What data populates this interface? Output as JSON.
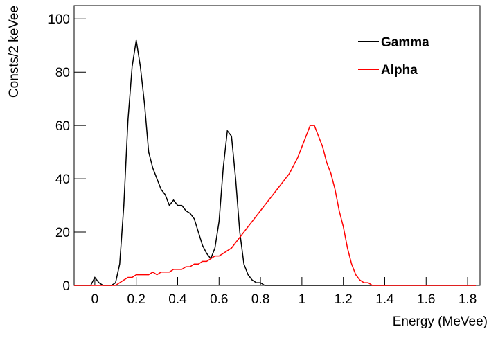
{
  "chart_data": {
    "type": "line",
    "x_label": "Energy (MeVee)",
    "y_label": "Consts/2 keVee",
    "xlim": [
      -0.1,
      1.86
    ],
    "ylim": [
      0,
      105
    ],
    "xticks": [
      0,
      0.2,
      0.4,
      0.6,
      0.8,
      1,
      1.2,
      1.4,
      1.6,
      1.8
    ],
    "yticks": [
      0,
      20,
      40,
      60,
      80,
      100
    ],
    "legend": "upper right",
    "x": [
      -0.1,
      -0.08,
      -0.06,
      -0.04,
      -0.02,
      0,
      0.02,
      0.04,
      0.06,
      0.08,
      0.1,
      0.12,
      0.14,
      0.16,
      0.18,
      0.2,
      0.22,
      0.24,
      0.26,
      0.28,
      0.3,
      0.32,
      0.34,
      0.36,
      0.38,
      0.4,
      0.42,
      0.44,
      0.46,
      0.48,
      0.5,
      0.52,
      0.54,
      0.56,
      0.58,
      0.6,
      0.62,
      0.64,
      0.66,
      0.68,
      0.7,
      0.72,
      0.74,
      0.76,
      0.78,
      0.8,
      0.82,
      0.84,
      0.86,
      0.88,
      0.9,
      0.92,
      0.94,
      0.96,
      0.98,
      1,
      1.02,
      1.04,
      1.06,
      1.08,
      1.1,
      1.12,
      1.14,
      1.16,
      1.18,
      1.2,
      1.22,
      1.24,
      1.26,
      1.28,
      1.3,
      1.32,
      1.34,
      1.36,
      1.38,
      1.4,
      1.42,
      1.44,
      1.46,
      1.48,
      1.5,
      1.52,
      1.54,
      1.56,
      1.58,
      1.6,
      1.62,
      1.64,
      1.66,
      1.68,
      1.7,
      1.72,
      1.74,
      1.76,
      1.78,
      1.8,
      1.82,
      1.84
    ],
    "series": [
      {
        "name": "Gamma",
        "color": "#000000",
        "values": [
          0,
          0,
          0,
          0,
          0,
          3,
          1,
          0,
          0,
          0,
          1,
          8,
          30,
          62,
          82,
          92,
          82,
          68,
          50,
          44,
          40,
          36,
          34,
          30,
          32,
          30,
          30,
          28,
          27,
          25,
          20,
          15,
          12,
          10,
          14,
          24,
          44,
          58,
          56,
          40,
          20,
          8,
          4,
          2,
          1,
          1,
          0,
          0,
          0,
          0,
          0,
          0,
          0,
          0,
          0,
          0,
          0,
          0,
          0,
          0,
          0,
          0,
          0,
          0,
          0,
          0,
          0,
          0,
          0,
          0,
          0,
          0,
          0,
          0,
          0,
          0,
          0,
          0,
          0,
          0,
          0,
          0,
          0,
          0,
          0,
          0,
          0,
          0,
          0,
          0,
          0,
          0,
          0,
          0,
          0,
          0,
          0,
          0
        ]
      },
      {
        "name": "Alpha",
        "color": "#ff0000",
        "values": [
          0,
          0,
          0,
          0,
          0,
          0,
          0,
          0,
          0,
          0,
          0,
          1,
          2,
          3,
          3,
          4,
          4,
          4,
          4,
          5,
          4,
          5,
          5,
          5,
          6,
          6,
          6,
          7,
          7,
          8,
          8,
          9,
          9,
          10,
          11,
          11,
          12,
          13,
          14,
          16,
          18,
          20,
          22,
          24,
          26,
          28,
          30,
          32,
          34,
          36,
          38,
          40,
          42,
          45,
          48,
          52,
          56,
          60,
          60,
          56,
          52,
          46,
          42,
          36,
          28,
          22,
          14,
          8,
          4,
          2,
          1,
          1,
          0,
          0,
          0,
          0,
          0,
          0,
          0,
          0,
          0,
          0,
          0,
          0,
          0,
          0,
          0,
          0,
          0,
          0,
          0,
          0,
          0,
          0,
          0,
          0,
          0,
          0
        ]
      }
    ]
  }
}
